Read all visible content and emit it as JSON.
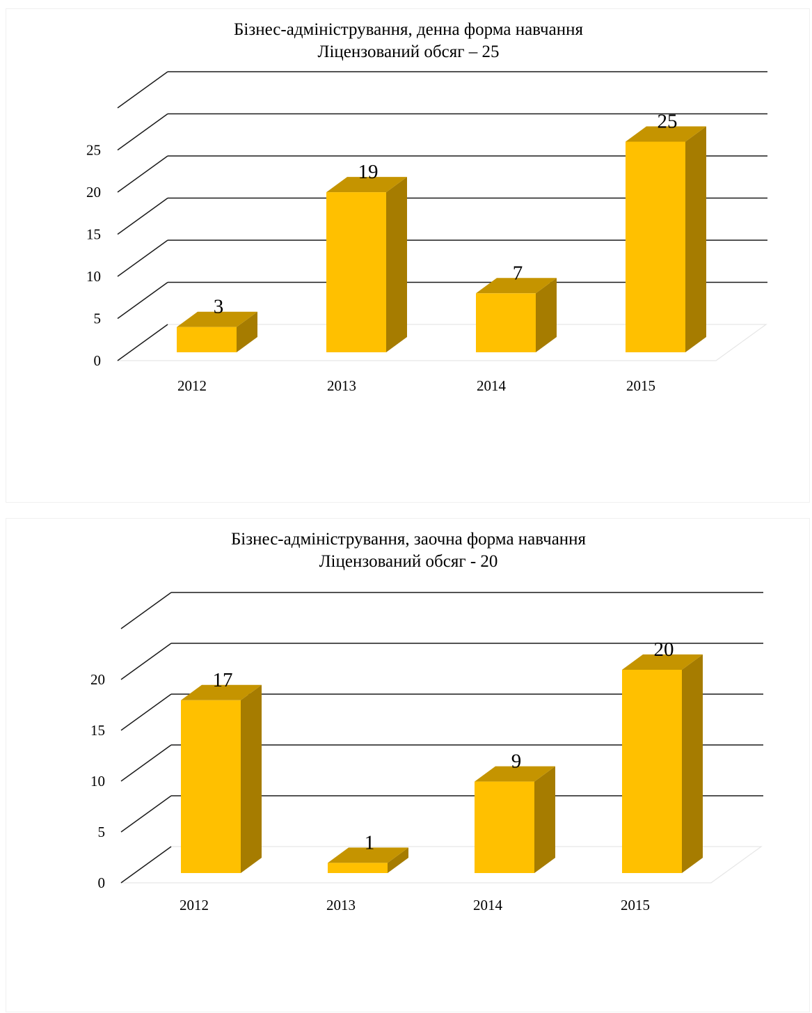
{
  "colors": {
    "bar_front": "#FFC000",
    "bar_top": "#C59400",
    "bar_side": "#A67C00",
    "gridline": "#1a1a1a",
    "floor": "#e6e6e6"
  },
  "chart_data": [
    {
      "type": "bar",
      "title": "Бізнес-адміністрування, денна форма навчання",
      "subtitle": "Ліцензований обсяг – 25",
      "categories": [
        "2012",
        "2013",
        "2014",
        "2015"
      ],
      "values": [
        3,
        19,
        7,
        25
      ],
      "data_labels": [
        "3",
        "19",
        "7",
        "25"
      ],
      "ylim": [
        0,
        30
      ],
      "yticks": [
        0,
        5,
        10,
        15,
        20,
        25
      ],
      "ytick_labels": [
        "0",
        "5",
        "10",
        "15",
        "20",
        "25"
      ],
      "gridlines": [
        5,
        10,
        15,
        20,
        25,
        30
      ],
      "grid": true,
      "style": "3d-column"
    },
    {
      "type": "bar",
      "title": "Бізнес-адміністрування, заочна форма навчання",
      "subtitle": "Ліцензований обсяг - 20",
      "categories": [
        "2012",
        "2013",
        "2014",
        "2015"
      ],
      "values": [
        17,
        1,
        9,
        20
      ],
      "data_labels": [
        "17",
        "1",
        "9",
        "20"
      ],
      "ylim": [
        0,
        25
      ],
      "yticks": [
        0,
        5,
        10,
        15,
        20
      ],
      "ytick_labels": [
        "0",
        "5",
        "10",
        "15",
        "20"
      ],
      "gridlines": [
        5,
        10,
        15,
        20,
        25
      ],
      "grid": true,
      "style": "3d-column"
    }
  ]
}
